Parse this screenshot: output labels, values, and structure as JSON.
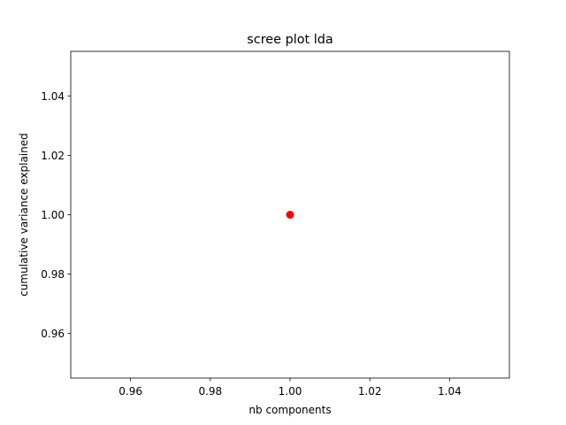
{
  "chart_data": {
    "type": "scatter",
    "title": "scree plot lda",
    "xlabel": "nb components",
    "ylabel": "cumulative variance explained",
    "xlim": [
      0.945,
      1.055
    ],
    "ylim": [
      0.945,
      1.055
    ],
    "xticks": [
      0.96,
      0.98,
      1.0,
      1.02,
      1.04
    ],
    "yticks": [
      0.96,
      0.98,
      1.0,
      1.02,
      1.04
    ],
    "xtick_labels": [
      "0.96",
      "0.98",
      "1.00",
      "1.02",
      "1.04"
    ],
    "ytick_labels": [
      "0.96",
      "0.98",
      "1.00",
      "1.02",
      "1.04"
    ],
    "grid": false,
    "points": [
      {
        "x": 1.0,
        "y": 1.0
      }
    ],
    "marker_color": "#ff0000"
  }
}
